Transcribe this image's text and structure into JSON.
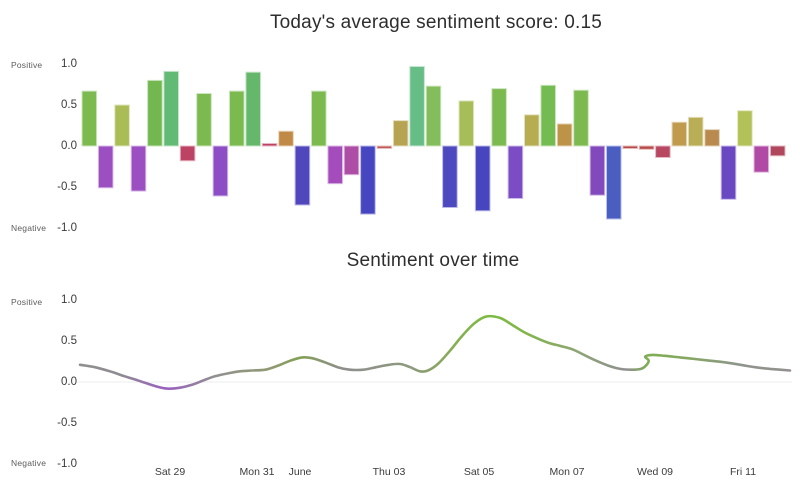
{
  "page": {
    "background": "#ffffff"
  },
  "chart_data": [
    {
      "type": "bar",
      "title": "Today's average sentiment score: 0.15",
      "ylabel_positive": "Positive",
      "ylabel_negative": "Negative",
      "ylim": [
        -1.0,
        1.0
      ],
      "yticks": [
        "1.0",
        "0.5",
        "0.0",
        "-0.5",
        "-1.0"
      ],
      "ytick_values": [
        1.0,
        0.5,
        0.0,
        -0.5,
        -1.0
      ],
      "grid": false,
      "bars": [
        {
          "value": 0.67,
          "color": "#7cba50"
        },
        {
          "value": -0.51,
          "color": "#9b4fc1"
        },
        {
          "value": 0.5,
          "color": "#a9bc55"
        },
        {
          "value": -0.55,
          "color": "#9b4fc1"
        },
        {
          "value": 0.8,
          "color": "#72b750"
        },
        {
          "value": 0.91,
          "color": "#62ba74"
        },
        {
          "value": -0.18,
          "color": "#bc4364"
        },
        {
          "value": 0.64,
          "color": "#7cba50"
        },
        {
          "value": -0.61,
          "color": "#8d4ec5"
        },
        {
          "value": 0.67,
          "color": "#7cba50"
        },
        {
          "value": 0.9,
          "color": "#65b86b"
        },
        {
          "value": 0.03,
          "color": "#bc4364"
        },
        {
          "value": 0.18,
          "color": "#c08a46"
        },
        {
          "value": -0.72,
          "color": "#5147bd"
        },
        {
          "value": 0.67,
          "color": "#7cba50"
        },
        {
          "value": -0.46,
          "color": "#a54cbc"
        },
        {
          "value": -0.35,
          "color": "#ae4da6"
        },
        {
          "value": -0.83,
          "color": "#4646c0"
        },
        {
          "value": -0.03,
          "color": "#c05a5a"
        },
        {
          "value": 0.31,
          "color": "#b7a452"
        },
        {
          "value": 0.97,
          "color": "#66bd86"
        },
        {
          "value": 0.73,
          "color": "#84bd5b"
        },
        {
          "value": -0.75,
          "color": "#4d49be"
        },
        {
          "value": 0.55,
          "color": "#a7bd58"
        },
        {
          "value": -0.79,
          "color": "#4746bf"
        },
        {
          "value": 0.7,
          "color": "#7cba50"
        },
        {
          "value": -0.64,
          "color": "#7b4cc4"
        },
        {
          "value": 0.38,
          "color": "#b6ad53"
        },
        {
          "value": 0.74,
          "color": "#74bb52"
        },
        {
          "value": 0.27,
          "color": "#bd9348"
        },
        {
          "value": 0.68,
          "color": "#7cba50"
        },
        {
          "value": -0.6,
          "color": "#8149bc"
        },
        {
          "value": -0.89,
          "color": "#4a5ec2"
        },
        {
          "value": -0.03,
          "color": "#b94a4a"
        },
        {
          "value": -0.04,
          "color": "#b94a4a"
        },
        {
          "value": -0.14,
          "color": "#b84862"
        },
        {
          "value": 0.29,
          "color": "#c09a4d"
        },
        {
          "value": 0.35,
          "color": "#b9ae55"
        },
        {
          "value": 0.2,
          "color": "#b98a4e"
        },
        {
          "value": -0.65,
          "color": "#6a48c2"
        },
        {
          "value": 0.43,
          "color": "#b3c159"
        },
        {
          "value": -0.32,
          "color": "#b14aa5"
        },
        {
          "value": -0.12,
          "color": "#b0475d"
        }
      ]
    },
    {
      "type": "line",
      "title": "Sentiment over time",
      "ylabel_positive": "Positive",
      "ylabel_negative": "Negative",
      "ylim": [
        -1.0,
        1.0
      ],
      "yticks": [
        "1.0",
        "0.5",
        "0.0",
        "-0.5",
        "-1.0"
      ],
      "ytick_values": [
        1.0,
        0.5,
        0.0,
        -0.5,
        -1.0
      ],
      "grid": "zero-line-only",
      "zero_line_color": "#ececec",
      "line_width": 2.6,
      "xticks": [
        {
          "label": "Sat 29",
          "pos": 0.127
        },
        {
          "label": "Mon 31",
          "pos": 0.249
        },
        {
          "label": "June",
          "pos": 0.31
        },
        {
          "label": "Thu 03",
          "pos": 0.435
        },
        {
          "label": "Sat 05",
          "pos": 0.562
        },
        {
          "label": "Mon 07",
          "pos": 0.686
        },
        {
          "label": "Wed 09",
          "pos": 0.81
        },
        {
          "label": "Fri 11",
          "pos": 0.934
        }
      ],
      "points": [
        [
          0.0,
          0.21
        ],
        [
          0.021,
          0.18
        ],
        [
          0.042,
          0.13
        ],
        [
          0.063,
          0.07
        ],
        [
          0.085,
          0.01
        ],
        [
          0.106,
          -0.05
        ],
        [
          0.123,
          -0.08
        ],
        [
          0.141,
          -0.07
        ],
        [
          0.159,
          -0.03
        ],
        [
          0.177,
          0.03
        ],
        [
          0.19,
          0.07
        ],
        [
          0.211,
          0.11
        ],
        [
          0.225,
          0.13
        ],
        [
          0.242,
          0.14
        ],
        [
          0.261,
          0.15
        ],
        [
          0.279,
          0.2
        ],
        [
          0.296,
          0.26
        ],
        [
          0.313,
          0.3
        ],
        [
          0.327,
          0.29
        ],
        [
          0.345,
          0.24
        ],
        [
          0.363,
          0.18
        ],
        [
          0.38,
          0.15
        ],
        [
          0.399,
          0.15
        ],
        [
          0.417,
          0.18
        ],
        [
          0.435,
          0.21
        ],
        [
          0.451,
          0.22
        ],
        [
          0.465,
          0.18
        ],
        [
          0.479,
          0.13
        ],
        [
          0.49,
          0.14
        ],
        [
          0.504,
          0.22
        ],
        [
          0.521,
          0.38
        ],
        [
          0.538,
          0.56
        ],
        [
          0.556,
          0.72
        ],
        [
          0.573,
          0.8
        ],
        [
          0.592,
          0.78
        ],
        [
          0.608,
          0.7
        ],
        [
          0.625,
          0.61
        ],
        [
          0.642,
          0.54
        ],
        [
          0.659,
          0.48
        ],
        [
          0.676,
          0.44
        ],
        [
          0.693,
          0.4
        ],
        [
          0.71,
          0.33
        ],
        [
          0.727,
          0.26
        ],
        [
          0.744,
          0.2
        ],
        [
          0.761,
          0.16
        ],
        [
          0.777,
          0.15
        ],
        [
          0.79,
          0.16
        ],
        [
          0.797,
          0.2
        ],
        [
          0.801,
          0.26
        ],
        [
          0.796,
          0.31
        ],
        [
          0.806,
          0.33
        ],
        [
          0.824,
          0.32
        ],
        [
          0.845,
          0.3
        ],
        [
          0.866,
          0.28
        ],
        [
          0.887,
          0.26
        ],
        [
          0.908,
          0.24
        ],
        [
          0.93,
          0.21
        ],
        [
          0.951,
          0.18
        ],
        [
          0.972,
          0.16
        ],
        [
          1.0,
          0.14
        ]
      ],
      "gradient_stops": [
        [
          0.0,
          "#8f8f8f"
        ],
        [
          0.06,
          "#8f8b93"
        ],
        [
          0.12,
          "#9a5fc0"
        ],
        [
          0.19,
          "#909090"
        ],
        [
          0.27,
          "#8f9a70"
        ],
        [
          0.31,
          "#84a055"
        ],
        [
          0.37,
          "#8e8e8e"
        ],
        [
          0.47,
          "#8e9a7c"
        ],
        [
          0.53,
          "#87ae52"
        ],
        [
          0.57,
          "#7cbb40"
        ],
        [
          0.63,
          "#82b54a"
        ],
        [
          0.7,
          "#8da575"
        ],
        [
          0.77,
          "#8f8f8f"
        ],
        [
          0.8,
          "#7fae52"
        ],
        [
          0.86,
          "#85a763"
        ],
        [
          0.93,
          "#8f948c"
        ],
        [
          1.0,
          "#94908d"
        ]
      ]
    }
  ]
}
